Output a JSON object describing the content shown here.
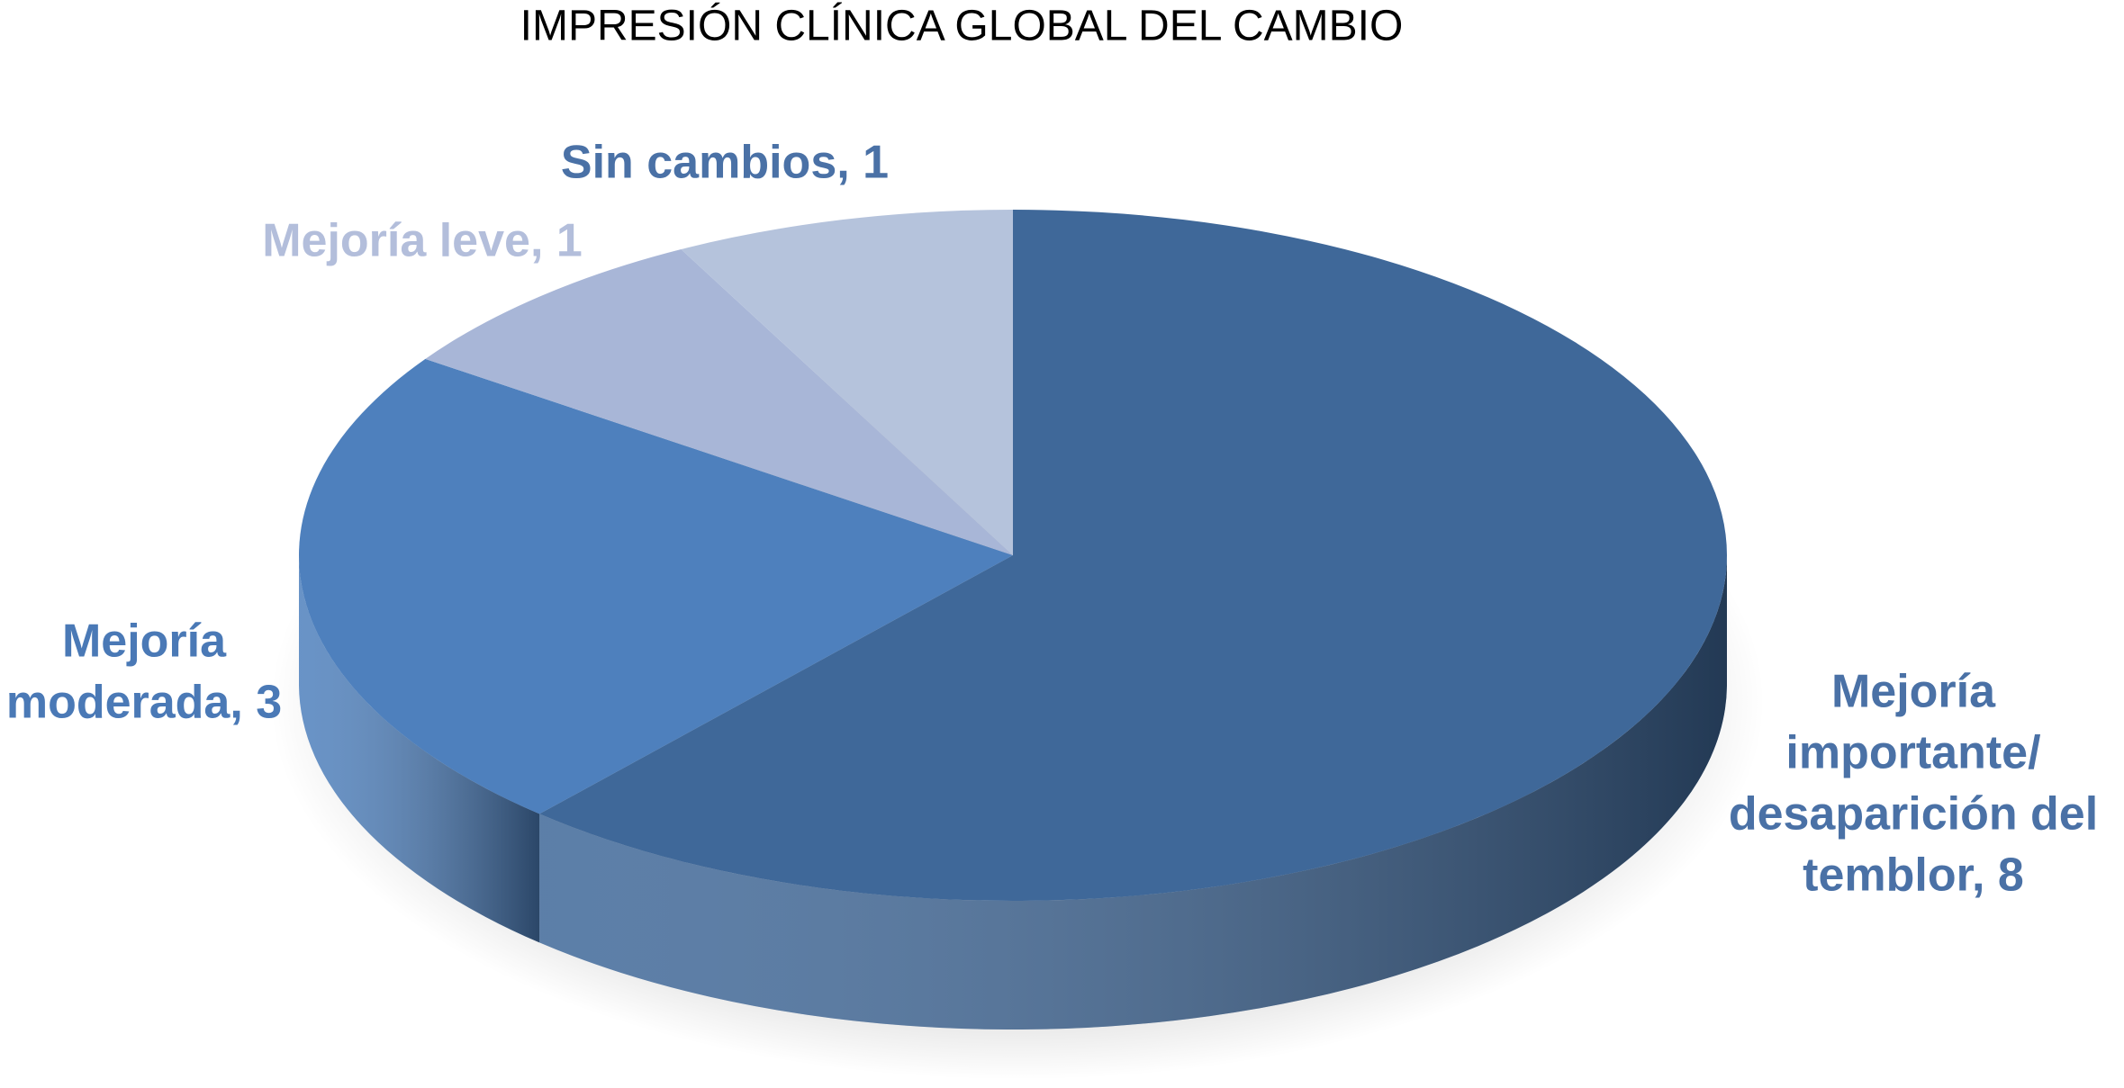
{
  "chart_data": {
    "type": "pie3d",
    "title": "IMPRESIÓN CLÍNICA GLOBAL DEL CAMBIO",
    "values": [
      8,
      3,
      1,
      1
    ],
    "value_labels": [
      [
        "Mejoría",
        "importante/",
        "desaparición del",
        "temblor, 8"
      ],
      [
        "Mejoría",
        "moderada, 3"
      ],
      [
        "Mejoría leve, 1"
      ],
      [
        "Sin cambios, 1"
      ]
    ],
    "colors": [
      "#3f6899",
      "#4e80bd",
      "#a8b6d7",
      "#b5c3dc"
    ],
    "label_colors": [
      "#4a71a6",
      "#4a79b6",
      "#b3bedb",
      "#4a71a6"
    ]
  }
}
